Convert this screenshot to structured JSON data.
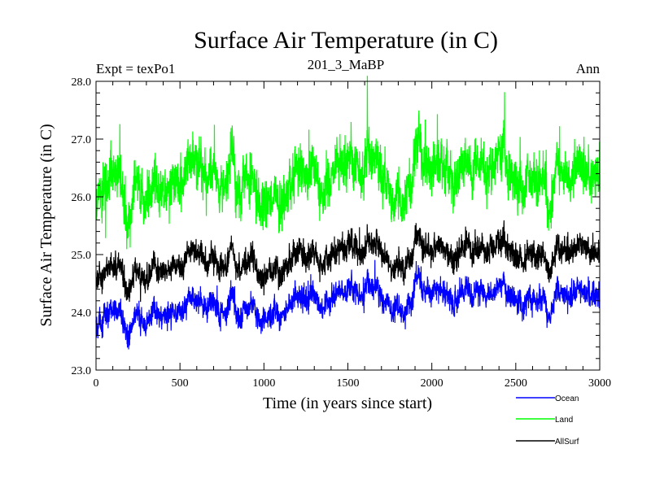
{
  "chart_data": {
    "type": "line",
    "title": "Surface Air Temperature (in C)",
    "subtitle_left": "Expt = texPo1",
    "subtitle_center": "201_3_MaBP",
    "subtitle_right": "Ann",
    "xlabel": "Time (in years since start)",
    "ylabel": "Surface Air Temperature (in C)",
    "xlim": [
      0,
      3000
    ],
    "ylim": [
      23.0,
      28.0
    ],
    "x_ticks": [
      0,
      500,
      1000,
      1500,
      2000,
      2500,
      3000
    ],
    "x_tick_labels": [
      "0",
      "500",
      "1000",
      "1500",
      "2000",
      "2500",
      "3000"
    ],
    "y_ticks": [
      23.0,
      24.0,
      25.0,
      26.0,
      27.0,
      28.0
    ],
    "y_tick_labels": [
      "23.0",
      "24.0",
      "25.0",
      "26.0",
      "27.0",
      "28.0"
    ],
    "grid": false,
    "legend_position": "bottom-right",
    "x_step": 1,
    "series": [
      {
        "name": "Ocean",
        "color": "#0000ff",
        "trend": [
          [
            0,
            23.8
          ],
          [
            300,
            23.9
          ],
          [
            600,
            24.0
          ],
          [
            900,
            24.05
          ],
          [
            1100,
            24.2
          ],
          [
            1500,
            24.3
          ],
          [
            2000,
            24.3
          ],
          [
            2500,
            24.35
          ],
          [
            3000,
            24.3
          ]
        ],
        "amplitude": 0.14,
        "spike_amplitude": 0.28
      },
      {
        "name": "Land",
        "color": "#00ff00",
        "trend": [
          [
            0,
            26.0
          ],
          [
            300,
            26.05
          ],
          [
            600,
            26.2
          ],
          [
            900,
            26.3
          ],
          [
            1100,
            26.35
          ],
          [
            1500,
            26.45
          ],
          [
            2000,
            26.45
          ],
          [
            2500,
            26.5
          ],
          [
            3000,
            26.35
          ]
        ],
        "amplitude": 0.28,
        "spike_amplitude": 0.65
      },
      {
        "name": "AllSurf",
        "color": "#000000",
        "trend": [
          [
            0,
            24.6
          ],
          [
            300,
            24.65
          ],
          [
            600,
            24.8
          ],
          [
            900,
            24.85
          ],
          [
            1100,
            24.95
          ],
          [
            1500,
            25.05
          ],
          [
            2000,
            25.05
          ],
          [
            2500,
            25.1
          ],
          [
            3000,
            25.05
          ]
        ],
        "amplitude": 0.15,
        "spike_amplitude": 0.3
      }
    ]
  }
}
